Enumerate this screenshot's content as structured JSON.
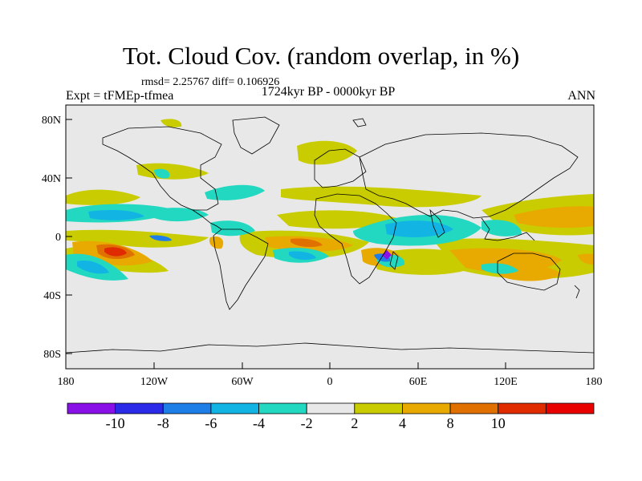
{
  "header": {
    "title": "Tot. Cloud Cov. (random overlap, in %)",
    "stats": "rmsd= 2.25767 diff= 0.106926",
    "period": "1724kyr BP - 0000kyr BP",
    "experiment": "Expt = tFMEp-tfmea",
    "season": "ANN"
  },
  "axes": {
    "lon_labels": [
      "180",
      "120W",
      "60W",
      "0",
      "60E",
      "120E",
      "180"
    ],
    "lat_labels": [
      "80N",
      "40N",
      "0",
      "40S",
      "80S"
    ]
  },
  "colorbar": {
    "labels": [
      "-10",
      "-8",
      "-6",
      "-4",
      "-2",
      "2",
      "4",
      "8",
      "10"
    ],
    "colors": [
      "#8a10e8",
      "#2a2ae8",
      "#1e7ee8",
      "#12b4e4",
      "#22d8c0",
      "#e8e8e8",
      "#c8cc00",
      "#e8aa00",
      "#e07000",
      "#e02a00",
      "#e80000"
    ]
  },
  "colors": {
    "background": "#e8e8e8",
    "coast": "#000000"
  }
}
